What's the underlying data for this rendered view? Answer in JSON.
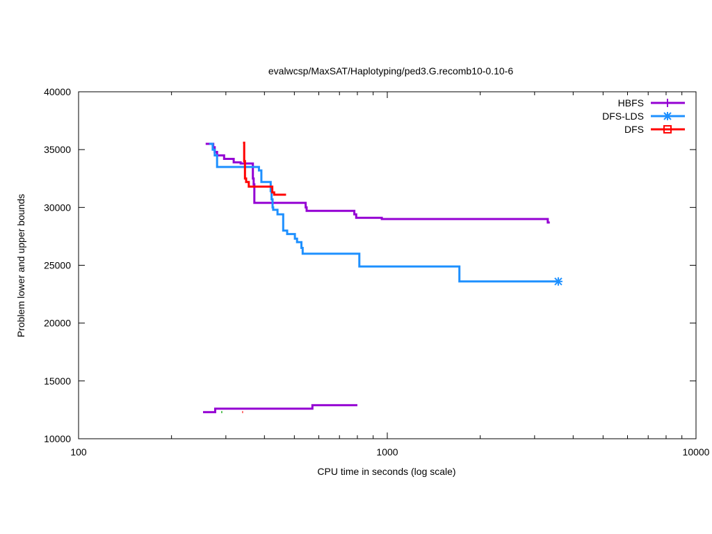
{
  "chart_data": {
    "type": "line",
    "title": "evalwcsp/MaxSAT/Haplotyping/ped3.G.recomb10-0.10-6",
    "xlabel": "CPU time in seconds (log scale)",
    "ylabel": "Problem lower and upper bounds",
    "x_scale": "log",
    "xlim": [
      100,
      10000
    ],
    "ylim": [
      10000,
      40000
    ],
    "x_ticks": [
      {
        "value": 100,
        "label": "100"
      },
      {
        "value": 1000,
        "label": "1000"
      },
      {
        "value": 10000,
        "label": "10000"
      }
    ],
    "y_ticks": [
      {
        "value": 10000,
        "label": "10000"
      },
      {
        "value": 15000,
        "label": "15000"
      },
      {
        "value": 20000,
        "label": "20000"
      },
      {
        "value": 25000,
        "label": "25000"
      },
      {
        "value": 30000,
        "label": "30000"
      },
      {
        "value": 35000,
        "label": "35000"
      },
      {
        "value": 40000,
        "label": "40000"
      }
    ],
    "grid": false,
    "legend_position": "top-right",
    "series": [
      {
        "name": "HBFS",
        "color": "#9400d3",
        "marker": "plus",
        "kind": "upper_bound_step",
        "points": [
          [
            258,
            35500
          ],
          [
            271,
            35500
          ],
          [
            273,
            35200
          ],
          [
            276,
            34800
          ],
          [
            281,
            34500
          ],
          [
            296,
            34500
          ],
          [
            296,
            34200
          ],
          [
            318,
            34200
          ],
          [
            318,
            33900
          ],
          [
            335,
            33900
          ],
          [
            335,
            33800
          ],
          [
            365,
            33800
          ],
          [
            367,
            32500
          ],
          [
            369,
            32000
          ],
          [
            371,
            30400
          ],
          [
            540,
            30400
          ],
          [
            544,
            30000
          ],
          [
            548,
            29700
          ],
          [
            780,
            29700
          ],
          [
            782,
            29400
          ],
          [
            793,
            29100
          ],
          [
            960,
            29000
          ],
          [
            3300,
            29000
          ],
          [
            3310,
            28700
          ],
          [
            3360,
            28700
          ]
        ]
      },
      {
        "name": "HBFS lower bound",
        "color": "#9400d3",
        "kind": "lower_bound_step",
        "points": [
          [
            253,
            12300
          ],
          [
            275,
            12300
          ],
          [
            277,
            12600
          ],
          [
            570,
            12600
          ],
          [
            572,
            12900
          ],
          [
            800,
            12900
          ]
        ]
      },
      {
        "name": "DFS-LDS",
        "color": "#1e90ff",
        "marker": "asterisk",
        "kind": "upper_bound_step",
        "points": [
          [
            265,
            35500
          ],
          [
            270,
            35500
          ],
          [
            272,
            35000
          ],
          [
            276,
            34500
          ],
          [
            281,
            33500
          ],
          [
            380,
            33500
          ],
          [
            384,
            33200
          ],
          [
            391,
            32200
          ],
          [
            417,
            32200
          ],
          [
            419,
            31400
          ],
          [
            422,
            30700
          ],
          [
            425,
            30000
          ],
          [
            427,
            29800
          ],
          [
            440,
            29800
          ],
          [
            441,
            29400
          ],
          [
            458,
            29400
          ],
          [
            460,
            28000
          ],
          [
            472,
            28000
          ],
          [
            474,
            27700
          ],
          [
            500,
            27700
          ],
          [
            502,
            27300
          ],
          [
            510,
            27000
          ],
          [
            520,
            27000
          ],
          [
            527,
            26500
          ],
          [
            532,
            26000
          ],
          [
            810,
            26000
          ],
          [
            812,
            24900
          ],
          [
            1710,
            24900
          ],
          [
            1712,
            23600
          ],
          [
            3580,
            23600
          ]
        ]
      },
      {
        "name": "DFS-LDS lower bound",
        "color": "#00a000",
        "kind": "lower_bound_dot",
        "points": [
          [
            290,
            12300
          ],
          [
            292,
            12300
          ]
        ]
      },
      {
        "name": "DFS",
        "color": "#ff0000",
        "marker": "square",
        "kind": "upper_bound_step",
        "points": [
          [
            341,
            35600
          ],
          [
            344,
            34000
          ],
          [
            346,
            32500
          ],
          [
            349,
            32200
          ],
          [
            354,
            32200
          ],
          [
            356,
            31800
          ],
          [
            421,
            31800
          ],
          [
            424,
            31300
          ],
          [
            430,
            31100
          ],
          [
            470,
            31100
          ]
        ]
      },
      {
        "name": "DFS lower bound",
        "color": "#ff0000",
        "kind": "lower_bound_dot",
        "points": [
          [
            339,
            12300
          ],
          [
            341,
            12300
          ]
        ]
      }
    ],
    "end_markers": [
      {
        "series": "DFS-LDS",
        "x": 3580,
        "y": 23600
      }
    ],
    "legend": [
      {
        "label": "HBFS",
        "color": "#9400d3",
        "marker": "plus"
      },
      {
        "label": "DFS-LDS",
        "color": "#1e90ff",
        "marker": "asterisk"
      },
      {
        "label": "DFS",
        "color": "#ff0000",
        "marker": "square"
      }
    ]
  }
}
